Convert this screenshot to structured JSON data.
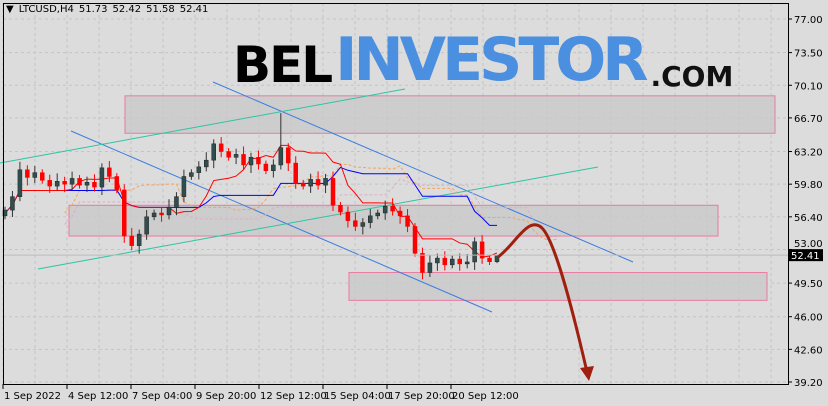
{
  "header": {
    "symbol": "LTCUSD,H4",
    "open": "51.73",
    "high": "52.42",
    "low": "51.58",
    "close": "52.41"
  },
  "logo": {
    "part1": "BEL",
    "part2": "INVESTOR",
    "part3": ".COM"
  },
  "colors": {
    "background": "#dcdcdc",
    "bull_candle": "#2f4f4f",
    "bear_candle": "#ff0000",
    "tenkan": "#ff0000",
    "kijun": "#0000ff",
    "cloud": "#f4a460",
    "zone_border": "#e87ca0",
    "trend_blue": "#3b7de0",
    "trend_green": "#2ec4a0",
    "forecast_arrow": "#a02010",
    "logo_blue": "#4a8fe0"
  },
  "chart_data": {
    "type": "candlestick",
    "symbol": "LTCUSD",
    "timeframe": "H4",
    "ylim": [
      39.2,
      77.0
    ],
    "y_ticks": [
      "77.00",
      "73.50",
      "70.10",
      "66.70",
      "63.20",
      "59.80",
      "56.40",
      "53.00",
      "49.50",
      "46.00",
      "42.60",
      "39.20"
    ],
    "x_ticks": [
      "1 Sep 2022",
      "4 Sep 12:00",
      "7 Sep 04:00",
      "9 Sep 20:00",
      "12 Sep 12:00",
      "15 Sep 04:00",
      "17 Sep 20:00",
      "20 Sep 12:00"
    ],
    "current_price": "52.41",
    "closes": [
      57.1,
      58.5,
      61.3,
      60.5,
      61.0,
      60.2,
      59.6,
      60.1,
      59.8,
      60.4,
      59.7,
      60.0,
      59.5,
      61.5,
      60.6,
      59.2,
      54.4,
      53.4,
      54.6,
      56.4,
      56.8,
      56.6,
      57.4,
      58.5,
      60.6,
      61.0,
      61.6,
      62.3,
      64.0,
      63.2,
      62.6,
      62.9,
      61.8,
      62.6,
      61.9,
      61.2,
      61.8,
      63.6,
      62.0,
      59.9,
      59.6,
      60.3,
      59.7,
      60.4,
      57.6,
      56.9,
      56.0,
      55.4,
      55.8,
      56.5,
      56.8,
      57.5,
      57.0,
      56.5,
      55.4,
      52.6,
      50.6,
      51.6,
      52.1,
      51.4,
      52.0,
      51.5,
      51.7,
      53.8,
      52.1,
      51.73,
      52.41
    ],
    "spike_high": {
      "index": 37,
      "price": 67.2
    },
    "zones": [
      {
        "top": 69.0,
        "bottom": 65.1
      },
      {
        "top": 57.6,
        "bottom": 54.4
      },
      {
        "top": 50.6,
        "bottom": 47.7
      }
    ],
    "legend": "none",
    "grid": true
  }
}
